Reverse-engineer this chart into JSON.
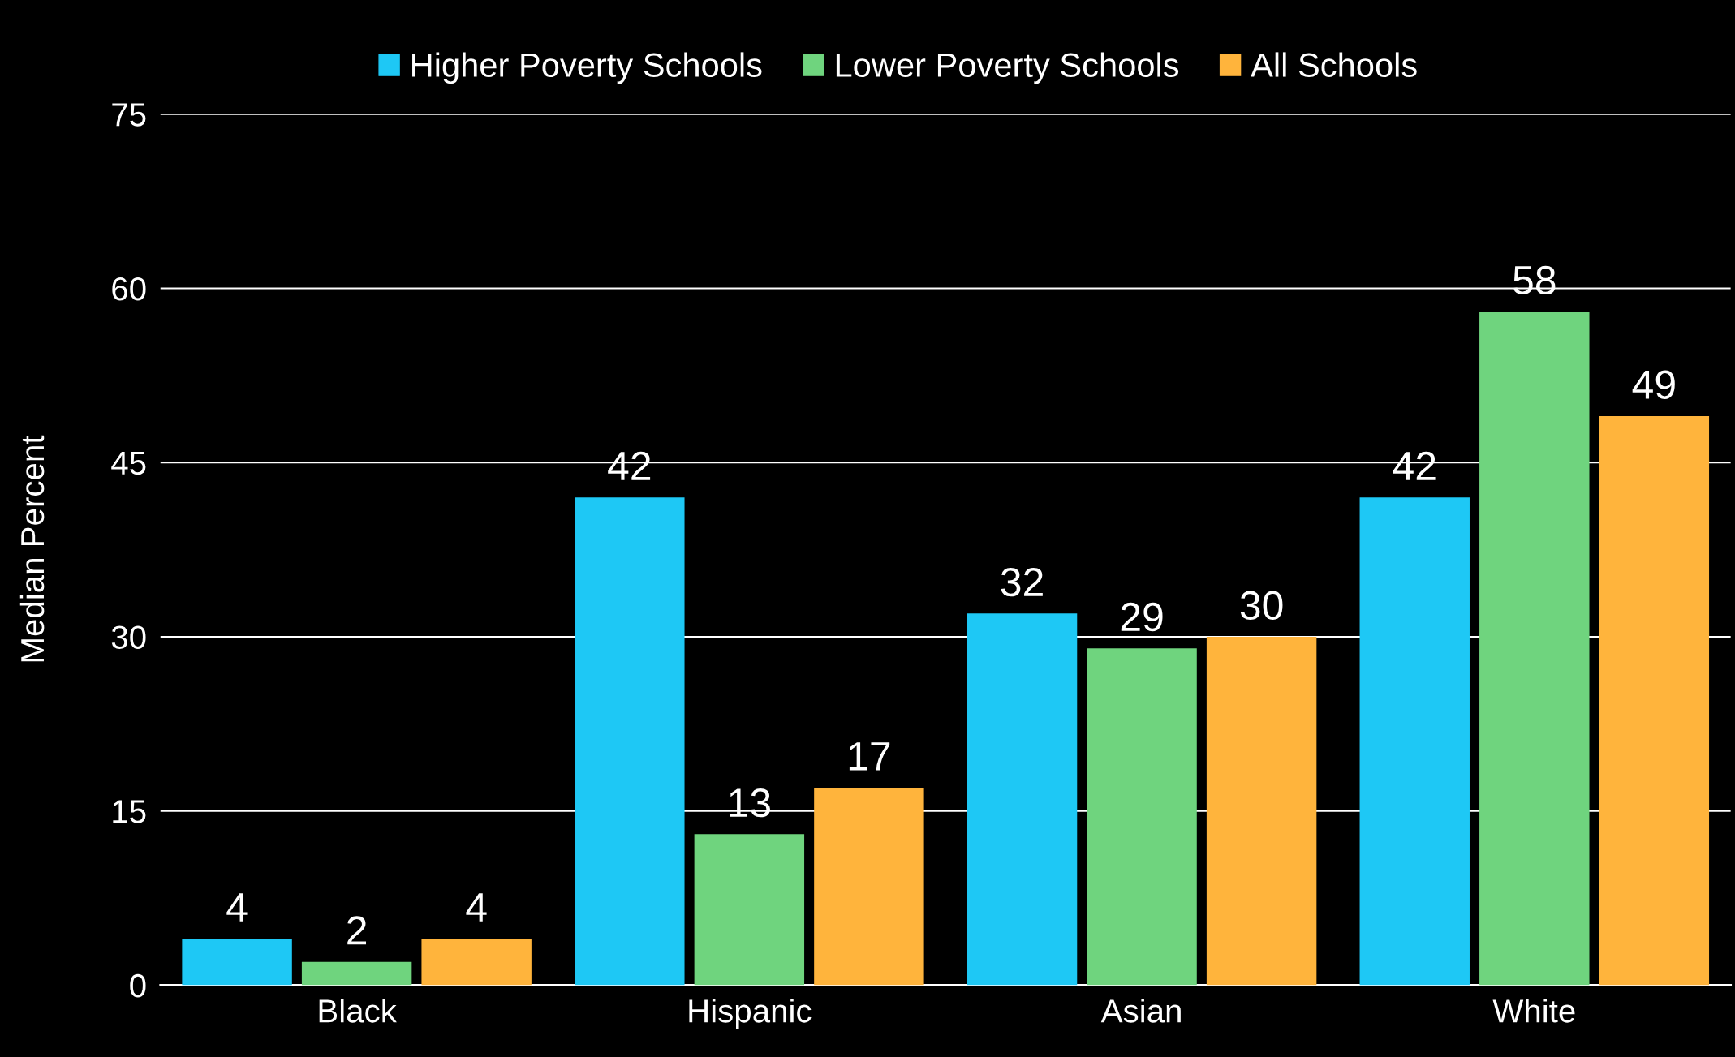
{
  "chart_data": {
    "type": "bar",
    "ylabel": "Median Percent",
    "categories": [
      "Black",
      "Hispanic",
      "Asian",
      "White"
    ],
    "series": [
      {
        "name": "Higher Poverty Schools",
        "color": "#1ec8f5",
        "values": [
          4,
          42,
          32,
          42
        ]
      },
      {
        "name": "Lower Poverty Schools",
        "color": "#6fd47e",
        "values": [
          2,
          13,
          29,
          58
        ]
      },
      {
        "name": "All Schools",
        "color": "#ffb43c",
        "values": [
          4,
          17,
          30,
          49
        ]
      }
    ],
    "ylim": [
      0,
      75
    ],
    "yticks": [
      0,
      15,
      30,
      45,
      60,
      75
    ],
    "grid": "y",
    "legend": "top",
    "data_labels": true
  }
}
